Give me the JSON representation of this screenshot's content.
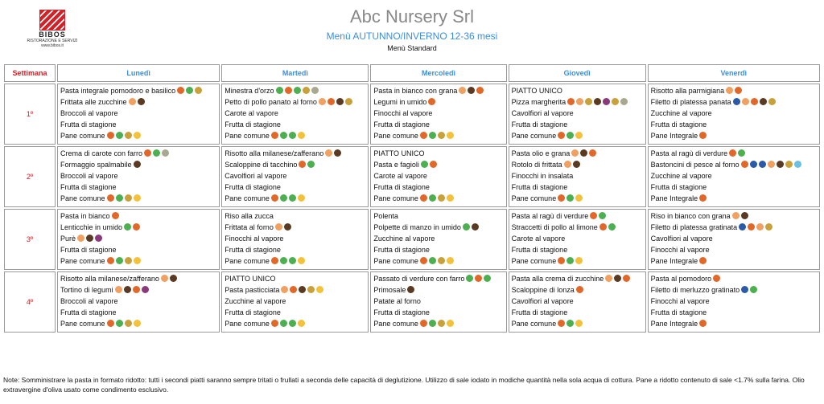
{
  "header": {
    "brand": "BIBOS",
    "brand_sub": "RISTORAZIONE E SERVIZI",
    "brand_url": "www.bibos.it",
    "title": "Abc Nursery Srl",
    "subtitle": "Menù AUTUNNO/INVERNO 12-36 mesi",
    "caption": "Menù Standard"
  },
  "table": {
    "columns": [
      "Settimana",
      "Lunedì",
      "Martedì",
      "Mercoledì",
      "Giovedì",
      "Venerdì"
    ],
    "rows": [
      {
        "week": "1º",
        "days": [
          [
            {
              "text": "Pasta integrale pomodoro e basilico",
              "icons": [
                "#e2682a",
                "#4caf50",
                "#c9a13b"
              ]
            },
            {
              "text": "Frittata alle zucchine",
              "icons": [
                "#f0a060",
                "#5a3a22"
              ]
            },
            {
              "text": "Broccoli al vapore"
            },
            {
              "text": "Frutta di stagione"
            },
            {
              "text": "Pane comune",
              "icons": [
                "#e2682a",
                "#4caf50",
                "#c9a13b",
                "#f3c23a"
              ]
            }
          ],
          [
            {
              "text": "Minestra d'orzo",
              "icons": [
                "#4caf50",
                "#e2682a",
                "#4caf50",
                "#c9a13b",
                "#a8a890"
              ]
            },
            {
              "text": "Petto di pollo panato al forno",
              "icons": [
                "#f0a060",
                "#e2682a",
                "#5a3a22",
                "#c9a13b"
              ]
            },
            {
              "text": "Carote al vapore"
            },
            {
              "text": "Frutta di stagione"
            },
            {
              "text": "Pane comune",
              "icons": [
                "#e2682a",
                "#4caf50",
                "#4caf50",
                "#f3c23a"
              ]
            }
          ],
          [
            {
              "text": "Pasta in bianco con grana",
              "icons": [
                "#f0a060",
                "#5a3a22",
                "#e2682a"
              ]
            },
            {
              "text": "Legumi in umido",
              "icons": [
                "#e2682a"
              ]
            },
            {
              "text": "Finocchi al vapore"
            },
            {
              "text": "Frutta di stagione"
            },
            {
              "text": "Pane comune",
              "icons": [
                "#e2682a",
                "#4caf50",
                "#c9a13b",
                "#f3c23a"
              ]
            }
          ],
          [
            {
              "text": "PIATTO UNICO"
            },
            {
              "text": "Pizza margherita",
              "icons": [
                "#e2682a",
                "#f0a060",
                "#c9a13b",
                "#5a3a22",
                "#8a3a7a",
                "#c9a13b",
                "#a8a890"
              ]
            },
            {
              "text": "Cavolfiori al vapore"
            },
            {
              "text": "Frutta di stagione"
            },
            {
              "text": "Pane comune",
              "icons": [
                "#e2682a",
                "#4caf50",
                "#f3c23a"
              ]
            }
          ],
          [
            {
              "text": "Risotto alla parmigiana",
              "icons": [
                "#f0a060",
                "#e2682a"
              ]
            },
            {
              "text": "Filetto di platessa panata",
              "icons": [
                "#2a5aa8",
                "#f0a060",
                "#e2682a",
                "#5a3a22",
                "#c9a13b"
              ]
            },
            {
              "text": "Zucchine al vapore"
            },
            {
              "text": "Frutta di stagione"
            },
            {
              "text": "Pane Integrale",
              "icons": [
                "#e2682a"
              ]
            }
          ]
        ]
      },
      {
        "week": "2º",
        "days": [
          [
            {
              "text": "Crema di carote con farro",
              "icons": [
                "#e2682a",
                "#4caf50",
                "#a8a890"
              ]
            },
            {
              "text": "Formaggio spalmabile",
              "icons": [
                "#5a3a22"
              ]
            },
            {
              "text": "Broccoli al vapore"
            },
            {
              "text": "Frutta di stagione"
            },
            {
              "text": "Pane comune",
              "icons": [
                "#e2682a",
                "#4caf50",
                "#c9a13b",
                "#f3c23a"
              ]
            }
          ],
          [
            {
              "text": "Risotto alla milanese/zafferano",
              "icons": [
                "#f0a060",
                "#5a3a22"
              ]
            },
            {
              "text": "Scaloppine di tacchino",
              "icons": [
                "#e2682a",
                "#4caf50"
              ]
            },
            {
              "text": "Cavolfiori al vapore"
            },
            {
              "text": "Frutta di stagione"
            },
            {
              "text": "Pane comune",
              "icons": [
                "#e2682a",
                "#4caf50",
                "#4caf50",
                "#f3c23a"
              ]
            }
          ],
          [
            {
              "text": "PIATTO UNICO"
            },
            {
              "text": "Pasta e fagioli",
              "icons": [
                "#4caf50",
                "#e2682a"
              ]
            },
            {
              "text": "Carote al vapore"
            },
            {
              "text": "Frutta di stagione"
            },
            {
              "text": "Pane comune",
              "icons": [
                "#e2682a",
                "#4caf50",
                "#c9a13b",
                "#f3c23a"
              ]
            }
          ],
          [
            {
              "text": "Pasta olio e grana",
              "icons": [
                "#f0a060",
                "#5a3a22",
                "#e2682a"
              ]
            },
            {
              "text": "Rotolo di frittata",
              "icons": [
                "#f0a060",
                "#5a3a22"
              ]
            },
            {
              "text": "Finocchi in insalata"
            },
            {
              "text": "Frutta di stagione"
            },
            {
              "text": "Pane comune",
              "icons": [
                "#e2682a",
                "#4caf50",
                "#f3c23a"
              ]
            }
          ],
          [
            {
              "text": "Pasta al ragù di verdure",
              "icons": [
                "#e2682a",
                "#4caf50"
              ]
            },
            {
              "text": "Bastoncini di pesce al forno",
              "icons": [
                "#e2682a",
                "#2a5aa8",
                "#2a5aa8",
                "#f0a060",
                "#5a3a22",
                "#c9a13b",
                "#6ac0e0"
              ]
            },
            {
              "text": "Zucchine al vapore"
            },
            {
              "text": "Frutta di stagione"
            },
            {
              "text": "Pane Integrale",
              "icons": [
                "#e2682a"
              ]
            }
          ]
        ]
      },
      {
        "week": "3º",
        "days": [
          [
            {
              "text": "Pasta in bianco",
              "icons": [
                "#e2682a"
              ]
            },
            {
              "text": "Lenticchie in umido",
              "icons": [
                "#4caf50",
                "#e2682a"
              ]
            },
            {
              "text": "Purè",
              "icons": [
                "#f0a060",
                "#5a3a22",
                "#8a3a7a"
              ]
            },
            {
              "text": "Frutta di stagione"
            },
            {
              "text": "Pane comune",
              "icons": [
                "#e2682a",
                "#4caf50",
                "#c9a13b",
                "#f3c23a"
              ]
            }
          ],
          [
            {
              "text": "Riso alla zucca"
            },
            {
              "text": "Frittata al forno",
              "icons": [
                "#f0a060",
                "#5a3a22"
              ]
            },
            {
              "text": "Finocchi al vapore"
            },
            {
              "text": "Frutta di stagione"
            },
            {
              "text": "Pane comune",
              "icons": [
                "#e2682a",
                "#4caf50",
                "#4caf50",
                "#f3c23a"
              ]
            }
          ],
          [
            {
              "text": "Polenta"
            },
            {
              "text": "Polpette di manzo in umido",
              "icons": [
                "#4caf50",
                "#5a3a22"
              ]
            },
            {
              "text": "Zucchine al vapore"
            },
            {
              "text": "Frutta di stagione"
            },
            {
              "text": "Pane comune",
              "icons": [
                "#e2682a",
                "#4caf50",
                "#c9a13b",
                "#f3c23a"
              ]
            }
          ],
          [
            {
              "text": "Pasta al ragù di verdure",
              "icons": [
                "#e2682a",
                "#4caf50"
              ]
            },
            {
              "text": "Straccetti di pollo al limone",
              "icons": [
                "#e2682a",
                "#4caf50"
              ]
            },
            {
              "text": "Carote al vapore"
            },
            {
              "text": "Frutta di stagione"
            },
            {
              "text": "Pane comune",
              "icons": [
                "#e2682a",
                "#4caf50",
                "#f3c23a"
              ]
            }
          ],
          [
            {
              "text": "Riso in bianco con grana",
              "icons": [
                "#f0a060",
                "#5a3a22"
              ]
            },
            {
              "text": "Filetto di platessa gratinata",
              "icons": [
                "#2a5aa8",
                "#e2682a",
                "#f0a060",
                "#c9a13b"
              ]
            },
            {
              "text": "Cavolfiori al vapore"
            },
            {
              "text": "Finocchi al vapore"
            },
            {
              "text": "Pane Integrale",
              "icons": [
                "#e2682a"
              ]
            }
          ]
        ]
      },
      {
        "week": "4º",
        "days": [
          [
            {
              "text": "Risotto alla milanese/zafferano",
              "icons": [
                "#f0a060",
                "#5a3a22"
              ]
            },
            {
              "text": "Tortino di legumi",
              "icons": [
                "#f0a060",
                "#5a3a22",
                "#e2682a",
                "#8a3a7a"
              ]
            },
            {
              "text": "Broccoli al vapore"
            },
            {
              "text": "Frutta di stagione"
            },
            {
              "text": "Pane comune",
              "icons": [
                "#e2682a",
                "#4caf50",
                "#c9a13b",
                "#f3c23a"
              ]
            }
          ],
          [
            {
              "text": "PIATTO UNICO"
            },
            {
              "text": "Pasta pasticciata",
              "icons": [
                "#f0a060",
                "#e2682a",
                "#5a3a22",
                "#c9a13b",
                "#f3c23a"
              ]
            },
            {
              "text": "Zucchine al vapore"
            },
            {
              "text": "Frutta di stagione"
            },
            {
              "text": "Pane comune",
              "icons": [
                "#e2682a",
                "#4caf50",
                "#4caf50",
                "#f3c23a"
              ]
            }
          ],
          [
            {
              "text": "Passato di verdure con farro",
              "icons": [
                "#4caf50",
                "#e2682a",
                "#4caf50"
              ]
            },
            {
              "text": "Primosale",
              "icons": [
                "#5a3a22"
              ]
            },
            {
              "text": "Patate al forno"
            },
            {
              "text": "Frutta di stagione"
            },
            {
              "text": "Pane comune",
              "icons": [
                "#e2682a",
                "#4caf50",
                "#c9a13b",
                "#f3c23a"
              ]
            }
          ],
          [
            {
              "text": "Pasta alla crema di zucchine",
              "icons": [
                "#f0a060",
                "#5a3a22",
                "#e2682a"
              ]
            },
            {
              "text": "Scaloppine di lonza",
              "icons": [
                "#e2682a"
              ]
            },
            {
              "text": "Cavolfiori al vapore"
            },
            {
              "text": "Frutta di stagione"
            },
            {
              "text": "Pane comune",
              "icons": [
                "#e2682a",
                "#4caf50",
                "#f3c23a"
              ]
            }
          ],
          [
            {
              "text": "Pasta al pomodoro",
              "icons": [
                "#e2682a"
              ]
            },
            {
              "text": "Filetto di merluzzo gratinato",
              "icons": [
                "#2a5aa8",
                "#4caf50"
              ]
            },
            {
              "text": "Finocchi al vapore"
            },
            {
              "text": "Frutta di stagione"
            },
            {
              "text": "Pane Integrale",
              "icons": [
                "#e2682a"
              ]
            }
          ]
        ]
      }
    ]
  },
  "note": "Note: Somministrare la pasta in formato ridotto: tutti i secondi piatti saranno sempre tritati o frullati a seconda delle capacità di deglutizione. Utilizzo di sale iodato in modiche quantità nella sola acqua di cottura. Pane a ridotto contenuto di sale <1.7% sulla farina. Olio extravergine d'oliva usato come condimento esclusivo."
}
